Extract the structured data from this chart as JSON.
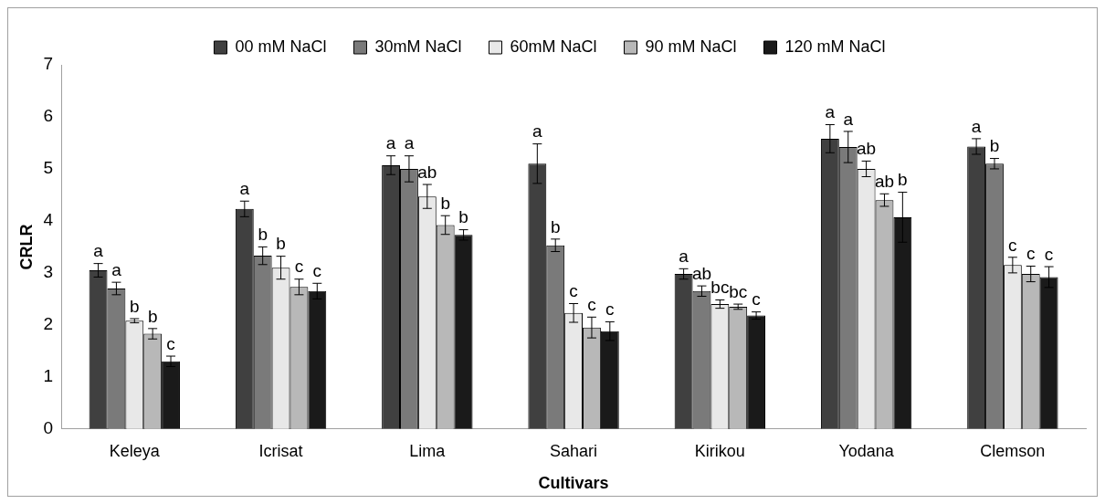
{
  "chart_data": {
    "type": "bar",
    "xlabel": "Cultivars",
    "ylabel": "CRLR",
    "categories": [
      "Keleya",
      "Icrisat",
      "Lima",
      "Sahari",
      "Kirikou",
      "Yodana",
      "Clemson"
    ],
    "series": [
      {
        "name": "00 mM NaCl",
        "color": "#404040",
        "values": [
          3.05,
          4.23,
          5.07,
          5.1,
          2.98,
          5.58,
          5.43
        ],
        "errors": [
          0.13,
          0.15,
          0.18,
          0.38,
          0.1,
          0.27,
          0.15
        ],
        "value_labels": [
          "a",
          "a",
          "a",
          "a",
          "a",
          "a",
          "a"
        ]
      },
      {
        "name": "30mM NaCl",
        "color": "#7a7a7a",
        "values": [
          2.7,
          3.33,
          5.0,
          3.53,
          2.65,
          5.42,
          5.1
        ],
        "errors": [
          0.12,
          0.17,
          0.25,
          0.12,
          0.1,
          0.3,
          0.1
        ],
        "value_labels": [
          "a",
          "b",
          "a",
          "b",
          "ab",
          "a",
          "b"
        ]
      },
      {
        "name": "60mM NaCl",
        "color": "#e8e8e8",
        "values": [
          2.08,
          3.1,
          4.47,
          2.23,
          2.4,
          5.0,
          3.15
        ],
        "errors": [
          0.04,
          0.22,
          0.23,
          0.18,
          0.08,
          0.15,
          0.15
        ],
        "value_labels": [
          "b",
          "b",
          "ab",
          "c",
          "bc",
          "ab",
          "c"
        ]
      },
      {
        "name": "90 mM NaCl",
        "color": "#b8b8b8",
        "values": [
          1.83,
          2.73,
          3.92,
          1.95,
          2.35,
          4.4,
          2.98
        ],
        "errors": [
          0.1,
          0.15,
          0.18,
          0.2,
          0.05,
          0.12,
          0.15
        ],
        "value_labels": [
          "b",
          "c",
          "b",
          "c",
          "bc",
          "ab",
          "c"
        ]
      },
      {
        "name": "120 mM NaCl",
        "color": "#1a1a1a",
        "values": [
          1.3,
          2.65,
          3.73,
          1.88,
          2.18,
          4.07,
          2.92
        ],
        "errors": [
          0.1,
          0.15,
          0.1,
          0.18,
          0.07,
          0.48,
          0.2
        ],
        "value_labels": [
          "c",
          "c",
          "b",
          "c",
          "c",
          "b",
          "c"
        ]
      }
    ],
    "ylim": [
      0,
      7
    ],
    "yticks": [
      0,
      1,
      2,
      3,
      4,
      5,
      6,
      7
    ],
    "grid": false,
    "legend": "top"
  }
}
